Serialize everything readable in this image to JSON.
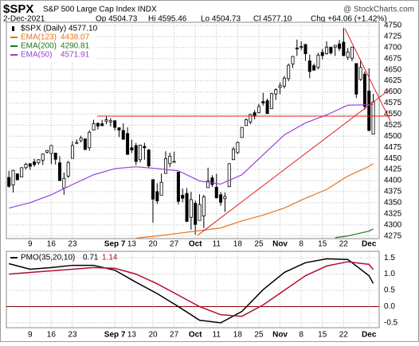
{
  "header": {
    "title": "$SPX",
    "subtitle": "S&P 500 Large Cap Index  INDX",
    "source": "@ StockCharts.com",
    "date": "2-Dec-2021",
    "stats": [
      "Op 4504.73",
      "Hi 4595.46",
      "Lo 4504.73",
      "Cl 4577.10",
      "Chg +64.06 (+1.42%)"
    ]
  },
  "chart_data": [
    {
      "type": "candlestick",
      "legend_label": "$SPX (Daily)",
      "legend_value": "4577.10",
      "color": "#000000",
      "grid": true,
      "categories": [
        null,
        null,
        null,
        null,
        null,
        "9",
        null,
        null,
        null,
        null,
        "16",
        null,
        null,
        null,
        null,
        "23",
        null,
        null,
        null,
        null,
        null,
        null,
        null,
        null,
        null,
        "Sep 7",
        null,
        null,
        null,
        "13",
        null,
        null,
        null,
        null,
        "20",
        null,
        null,
        null,
        null,
        "27",
        null,
        null,
        null,
        null,
        "Oct",
        null,
        null,
        null,
        null,
        "11",
        null,
        null,
        null,
        null,
        "18",
        null,
        null,
        null,
        null,
        "25",
        null,
        null,
        null,
        null,
        "Nov",
        null,
        null,
        null,
        null,
        "8",
        null,
        null,
        null,
        null,
        "15",
        null,
        null,
        null,
        null,
        "22",
        null,
        null,
        null,
        null,
        null,
        "Dec",
        null
      ],
      "open": [
        4407,
        4390,
        4415,
        4408,
        4429,
        4438,
        4442,
        4440,
        4446,
        4464,
        4461,
        4462,
        4440,
        4383,
        4410,
        4450,
        4484,
        4490,
        4494,
        4474,
        4514,
        4529,
        4528,
        4534,
        4532,
        4535,
        4519,
        4513,
        4506,
        4474,
        4479,
        4447,
        4477,
        4469,
        4402,
        4375,
        4367,
        4416,
        4438,
        4442,
        4419,
        4367,
        4371,
        4317,
        4349,
        4310,
        4320,
        4384,
        4406,
        4385,
        4368,
        4359,
        4386,
        4447,
        4463,
        4497,
        4524,
        4532,
        4553,
        4553,
        4578,
        4580,
        4562,
        4595,
        4610,
        4613,
        4630,
        4663,
        4699,
        4702,
        4707,
        4670,
        4659,
        4655,
        4689,
        4686,
        4701,
        4701,
        4708,
        4712,
        4678,
        4676,
        4664,
        4628,
        4640,
        4602,
        4504.73
      ],
      "high": [
        4422,
        4424,
        4416,
        4430,
        4440,
        4439,
        4449,
        4448,
        4461,
        4468,
        4480,
        4462,
        4455,
        4418,
        4444,
        4489,
        4493,
        4501,
        4495,
        4513,
        4537,
        4531,
        4537,
        4546,
        4541,
        4535,
        4520,
        4529,
        4520,
        4492,
        4485,
        4481,
        4485,
        4471,
        4403,
        4394,
        4416,
        4466,
        4463,
        4465,
        4419,
        4382,
        4383,
        4375,
        4355,
        4369,
        4368,
        4429,
        4412,
        4415,
        4374,
        4373,
        4439,
        4476,
        4488,
        4520,
        4540,
        4551,
        4559,
        4573,
        4598,
        4585,
        4598,
        4608,
        4621,
        4636,
        4664,
        4681,
        4718,
        4714,
        4708,
        4684,
        4664,
        4688,
        4697,
        4714,
        4701,
        4705,
        4717,
        4744,
        4699,
        4702,
        4664,
        4672,
        4646,
        4653,
        4595.46
      ],
      "low": [
        4384,
        4373,
        4400,
        4408,
        4425,
        4424,
        4431,
        4436,
        4435,
        4461,
        4437,
        4436,
        4399,
        4368,
        4406,
        4450,
        4482,
        4486,
        4469,
        4467,
        4514,
        4515,
        4522,
        4527,
        4522,
        4513,
        4498,
        4493,
        4458,
        4462,
        4435,
        4441,
        4447,
        4428,
        4305,
        4347,
        4367,
        4416,
        4430,
        4441,
        4346,
        4351,
        4306,
        4289,
        4278,
        4310,
        4293,
        4384,
        4386,
        4360,
        4343,
        4329,
        4386,
        4447,
        4460,
        4497,
        4524,
        4527,
        4538,
        4552,
        4569,
        4551,
        4562,
        4582,
        4595,
        4608,
        4624,
        4654,
        4681,
        4694,
        4670,
        4631,
        4648,
        4651,
        4673,
        4684,
        4684,
        4681,
        4692,
        4680,
        4672,
        4669,
        4586,
        4625,
        4560,
        4511,
        4504.73
      ],
      "close": [
        4387,
        4423,
        4402,
        4429,
        4437,
        4432,
        4436,
        4447,
        4460,
        4468,
        4479,
        4448,
        4400,
        4405,
        4441,
        4479,
        4486,
        4496,
        4470,
        4509,
        4528,
        4523,
        4524,
        4537,
        4535,
        4520,
        4514,
        4493,
        4459,
        4469,
        4443,
        4480,
        4474,
        4433,
        4358,
        4354,
        4396,
        4449,
        4455,
        4443,
        4353,
        4360,
        4308,
        4357,
        4301,
        4346,
        4363,
        4399,
        4391,
        4361,
        4351,
        4364,
        4438,
        4471,
        4486,
        4520,
        4537,
        4549,
        4545,
        4567,
        4575,
        4551,
        4596,
        4605,
        4614,
        4631,
        4660,
        4680,
        4697,
        4702,
        4686,
        4646,
        4649,
        4683,
        4682,
        4701,
        4688,
        4705,
        4698,
        4682,
        4690,
        4701,
        4595,
        4655,
        4567,
        4513,
        4577.1
      ],
      "series": [
        {
          "name": "EMA(123)",
          "color": "#e8731c",
          "x": [
            30,
            35,
            40,
            45,
            50,
            55,
            60,
            65,
            70,
            75,
            80,
            85,
            86
          ],
          "values": [
            4270,
            4275,
            4281,
            4287,
            4293,
            4309,
            4322,
            4338,
            4360,
            4380,
            4410,
            4432,
            4438.07
          ]
        },
        {
          "name": "EMA(200)",
          "color": "#1a7a1a",
          "x": [
            77,
            80,
            85,
            86
          ],
          "values": [
            4271,
            4275,
            4286,
            4290.81
          ]
        },
        {
          "name": "EMA(50)",
          "color": "#9b3fd6",
          "x": [
            0,
            5,
            10,
            15,
            20,
            25,
            30,
            35,
            40,
            45,
            50,
            55,
            60,
            65,
            70,
            75,
            80,
            85,
            86
          ],
          "values": [
            4338,
            4350,
            4368,
            4391,
            4413,
            4427,
            4431,
            4427,
            4422,
            4399,
            4392,
            4413,
            4458,
            4503,
            4530,
            4548,
            4570,
            4571,
            4571.91
          ]
        }
      ],
      "ylim": [
        4269,
        4757
      ],
      "yticks": [
        4275,
        4300,
        4325,
        4350,
        4375,
        4400,
        4425,
        4450,
        4475,
        4500,
        4525,
        4550,
        4575,
        4600,
        4625,
        4650,
        4675,
        4700,
        4725,
        4750
      ]
    },
    {
      "type": "line",
      "grid": true,
      "series": [
        {
          "name": "PMO(35,20,10)",
          "color": "#000000",
          "x": [
            0,
            5,
            10,
            15,
            20,
            25,
            30,
            35,
            40,
            45,
            50,
            55,
            60,
            65,
            70,
            75,
            80,
            85,
            86
          ],
          "values": [
            1.32,
            1.15,
            1.2,
            1.27,
            1.27,
            1.12,
            0.75,
            0.4,
            0.0,
            -0.42,
            -0.5,
            -0.15,
            0.52,
            1.05,
            1.35,
            1.47,
            1.45,
            0.95,
            0.71
          ]
        },
        {
          "color": "#b01030",
          "x": [
            0,
            5,
            10,
            15,
            20,
            25,
            30,
            35,
            40,
            45,
            50,
            55,
            60,
            65,
            70,
            75,
            80,
            85,
            86
          ],
          "values": [
            1.0,
            1.05,
            1.1,
            1.15,
            1.2,
            1.18,
            1.0,
            0.7,
            0.35,
            0.0,
            -0.25,
            -0.3,
            0.05,
            0.5,
            0.95,
            1.25,
            1.38,
            1.3,
            1.14
          ]
        }
      ],
      "ylim": [
        -0.65,
        1.7
      ],
      "yticks": [
        -0.5,
        {
          "value": 0,
          "label": "0.0"
        },
        0.5,
        {
          "value": 1,
          "label": "1.0"
        },
        1.5
      ]
    }
  ]
}
